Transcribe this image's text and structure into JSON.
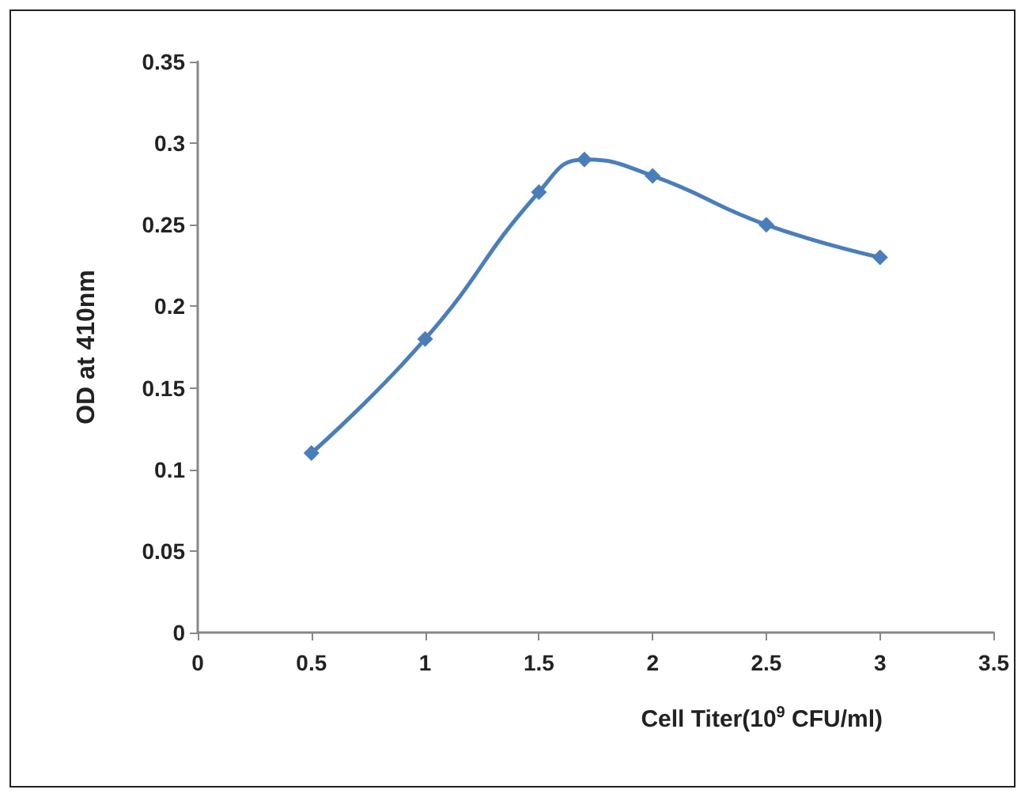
{
  "chart_data": {
    "type": "line",
    "xlabel": "Cell Titer(10$^{9}$ CFU/ml)",
    "ylabel": "OD at 410nm",
    "x": [
      0.5,
      1,
      1.5,
      1.7,
      2,
      2.5,
      3
    ],
    "series": [
      {
        "color": "#4a7ebb",
        "values": [
          0.11,
          0.18,
          0.27,
          0.29,
          0.28,
          0.25,
          0.23
        ]
      }
    ],
    "xlim": [
      0,
      3.5
    ],
    "xticks": [
      0,
      0.5,
      1,
      1.5,
      2,
      2.5,
      3,
      3.5
    ],
    "ylim": [
      0,
      0.35
    ],
    "yticks": [
      0,
      0.05,
      0.1,
      0.15,
      0.2,
      0.25,
      0.3,
      0.35
    ],
    "grid": false,
    "marker": "diamond",
    "line_style": "solid"
  }
}
